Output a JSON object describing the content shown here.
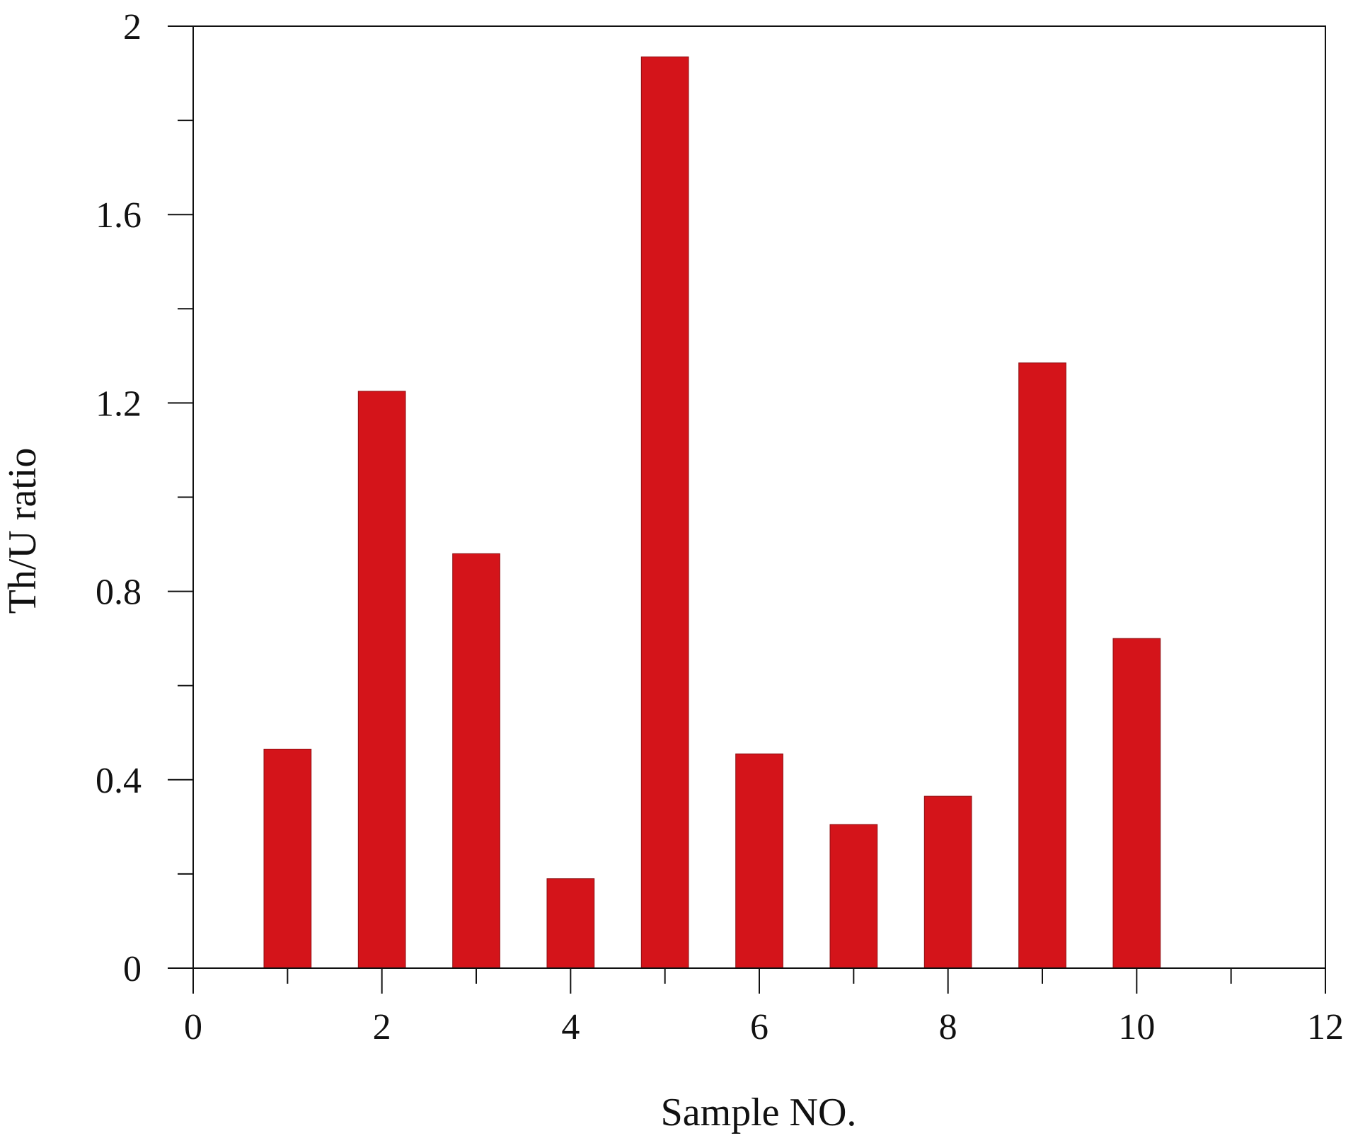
{
  "chart_data": {
    "type": "bar",
    "title": "",
    "xlabel": "Sample NO.",
    "ylabel": "Th/U ratio",
    "x": [
      1,
      2,
      3,
      4,
      5,
      6,
      7,
      8,
      9,
      10
    ],
    "values": [
      0.465,
      1.225,
      0.88,
      0.19,
      1.935,
      0.455,
      0.305,
      0.365,
      1.285,
      0.7
    ],
    "xlim": [
      0,
      12
    ],
    "ylim": [
      0,
      2
    ],
    "xticks_labeled": [
      0,
      2,
      4,
      6,
      8,
      10,
      12
    ],
    "xtick_labels": [
      "0",
      "2",
      "4",
      "6",
      "8",
      "10",
      "12"
    ],
    "xticks_minor": [
      1,
      3,
      5,
      7,
      9,
      11
    ],
    "yticks_labeled": [
      0,
      0.4,
      0.8,
      1.2,
      1.6,
      2
    ],
    "ytick_labels": [
      "0",
      "0.4",
      "0.8",
      "1.2",
      "1.6",
      "2"
    ],
    "yticks_minor": [
      0.2,
      0.6,
      1.0,
      1.4,
      1.8
    ],
    "bar_color": "#d4141a",
    "axis_color": "#111111",
    "grid": false,
    "legend": "none"
  }
}
